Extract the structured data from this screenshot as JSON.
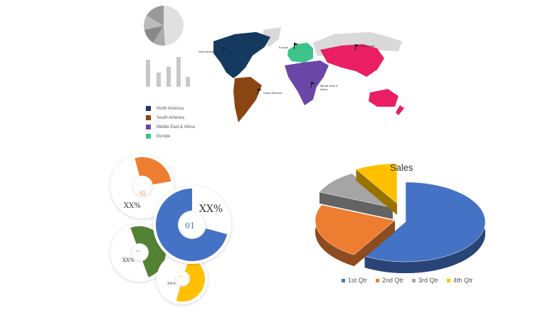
{
  "map": {
    "labels": {
      "north_america": "North America",
      "south_america": "South America",
      "europe": "Europe",
      "asia_pacific": "Asia Pacific",
      "mea": "Middle East & Africa"
    },
    "colors": {
      "north_america": "#163a5f",
      "south_america": "#8b4513",
      "mea": "#6b47a8",
      "europe": "#3cc48a",
      "asia_pacific": "#e91e63",
      "other": "#d9d9d9"
    },
    "legend": [
      {
        "label": "North America",
        "color": "#163a5f"
      },
      {
        "label": "South America",
        "color": "#8b4513"
      },
      {
        "label": "Middle East & Africa",
        "color": "#6b47a8"
      },
      {
        "label": "Europe",
        "color": "#3cc48a"
      }
    ]
  },
  "infographic": {
    "items": [
      {
        "number": "01",
        "value": "XX%",
        "color": "#4472c4"
      },
      {
        "number": "02",
        "value": "XX%",
        "color": "#ed7d31"
      },
      {
        "number": "03",
        "value": "XX%",
        "color": "#548235"
      },
      {
        "number": "04",
        "value": "XX%",
        "color": "#ffc000"
      }
    ]
  },
  "chart_data": {
    "type": "pie",
    "title": "Sales",
    "categories": [
      "1st Qtr",
      "2nd Qtr",
      "3rd Qtr",
      "4th Qtr"
    ],
    "values": [
      8.2,
      3.2,
      1.4,
      1.2
    ],
    "colors": [
      "#4472c4",
      "#ed7d31",
      "#a5a5a5",
      "#ffc000"
    ],
    "style": "3d-exploded",
    "legend_position": "bottom"
  }
}
